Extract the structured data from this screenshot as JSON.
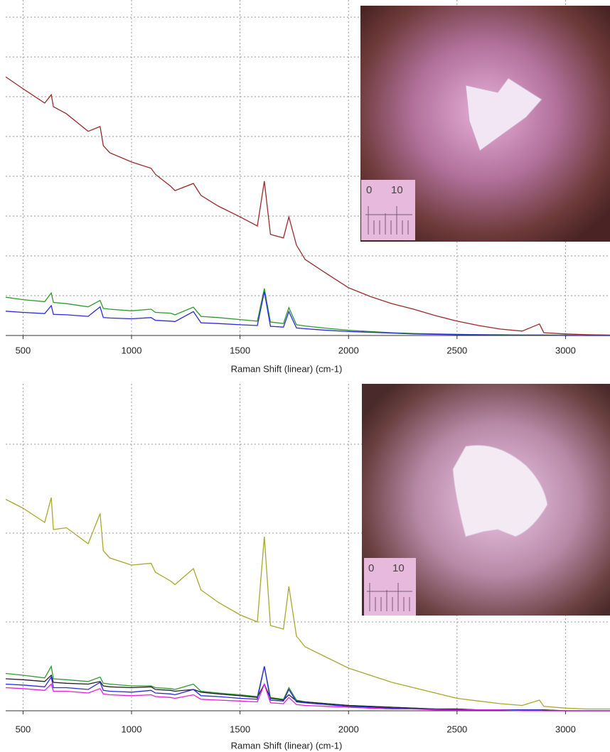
{
  "chart_data": [
    {
      "type": "line",
      "x_label": "Raman Shift (linear) (cm-1)",
      "x": [
        420,
        500,
        600,
        630,
        640,
        700,
        800,
        855,
        870,
        900,
        1000,
        1090,
        1110,
        1180,
        1200,
        1285,
        1320,
        1400,
        1500,
        1580,
        1612,
        1640,
        1700,
        1725,
        1760,
        1800,
        1900,
        2000,
        2100,
        2200,
        2300,
        2400,
        2500,
        2600,
        2700,
        2800,
        2880,
        2900,
        3000,
        3100,
        3205
      ],
      "xlim": [
        420,
        3205
      ],
      "xticks": [
        500,
        1000,
        1500,
        2000,
        2500,
        3000
      ],
      "ylim": [
        0,
        8.43
      ],
      "yticks": [
        0,
        1,
        2,
        3,
        4,
        5,
        6,
        7,
        8
      ],
      "grid": true,
      "series": [
        {
          "color": "#9b2a2a",
          "values": [
            6.5,
            6.2,
            5.84,
            6.05,
            5.75,
            5.57,
            5.13,
            5.25,
            4.77,
            4.59,
            4.36,
            4.2,
            4.05,
            3.75,
            3.64,
            3.82,
            3.52,
            3.25,
            2.98,
            2.75,
            3.88,
            2.54,
            2.45,
            2.98,
            2.27,
            1.91,
            1.55,
            1.2,
            0.98,
            0.8,
            0.66,
            0.5,
            0.36,
            0.25,
            0.16,
            0.11,
            0.29,
            0.07,
            0.04,
            0.02,
            0.01
          ]
        },
        {
          "color": "#2e9a2e",
          "values": [
            0.96,
            0.9,
            0.85,
            1.07,
            0.83,
            0.8,
            0.72,
            0.88,
            0.68,
            0.66,
            0.62,
            0.66,
            0.58,
            0.56,
            0.52,
            0.71,
            0.48,
            0.45,
            0.4,
            0.36,
            1.18,
            0.34,
            0.3,
            0.7,
            0.27,
            0.24,
            0.18,
            0.13,
            0.1,
            0.07,
            0.05,
            0.04,
            0.03,
            0.02,
            0.02,
            0.01,
            0.01,
            0.01,
            0.01,
            0,
            0
          ]
        },
        {
          "color": "#2a2ae0",
          "values": [
            0.61,
            0.58,
            0.55,
            0.75,
            0.53,
            0.52,
            0.48,
            0.72,
            0.45,
            0.44,
            0.42,
            0.45,
            0.38,
            0.36,
            0.35,
            0.6,
            0.32,
            0.3,
            0.27,
            0.25,
            1.1,
            0.23,
            0.21,
            0.6,
            0.19,
            0.17,
            0.13,
            0.1,
            0.08,
            0.06,
            0.04,
            0.03,
            0.02,
            0.02,
            0.01,
            0.01,
            0.01,
            0.01,
            0,
            0,
            0
          ]
        }
      ]
    },
    {
      "type": "line",
      "x_label": "Raman Shift (linear) (cm-1)",
      "x": [
        420,
        500,
        600,
        630,
        640,
        700,
        800,
        855,
        870,
        900,
        1000,
        1090,
        1110,
        1180,
        1200,
        1285,
        1320,
        1400,
        1500,
        1580,
        1612,
        1640,
        1700,
        1725,
        1760,
        1800,
        1900,
        2000,
        2100,
        2200,
        2300,
        2400,
        2500,
        2600,
        2700,
        2800,
        2880,
        2900,
        3000,
        3100,
        3205
      ],
      "xlim": [
        420,
        3205
      ],
      "xticks": [
        500,
        1000,
        1500,
        2000,
        2500,
        3000
      ],
      "ylim": [
        0,
        3.68
      ],
      "yticks": [
        0,
        1,
        2,
        3
      ],
      "grid": true,
      "series": [
        {
          "color": "#a8a830",
          "values": [
            2.38,
            2.28,
            2.12,
            2.4,
            2.04,
            2.06,
            1.88,
            2.22,
            1.8,
            1.72,
            1.64,
            1.66,
            1.56,
            1.46,
            1.42,
            1.6,
            1.36,
            1.22,
            1.08,
            1,
            1.96,
            0.96,
            0.92,
            1.4,
            0.84,
            0.72,
            0.6,
            0.48,
            0.4,
            0.32,
            0.26,
            0.2,
            0.14,
            0.11,
            0.08,
            0.06,
            0.12,
            0.05,
            0.03,
            0.02,
            0.02
          ]
        },
        {
          "color": "#2e9a2e",
          "values": [
            0.42,
            0.4,
            0.37,
            0.5,
            0.36,
            0.35,
            0.33,
            0.38,
            0.31,
            0.3,
            0.28,
            0.28,
            0.26,
            0.25,
            0.24,
            0.3,
            0.22,
            0.2,
            0.18,
            0.16,
            0.5,
            0.15,
            0.13,
            0.26,
            0.12,
            0.1,
            0.08,
            0.06,
            0.05,
            0.04,
            0.03,
            0.02,
            0.02,
            0.01,
            0.01,
            0.01,
            0.01,
            0.01,
            0,
            0,
            0
          ]
        },
        {
          "color": "#222222",
          "values": [
            0.36,
            0.35,
            0.33,
            0.4,
            0.32,
            0.31,
            0.3,
            0.33,
            0.28,
            0.27,
            0.26,
            0.27,
            0.24,
            0.23,
            0.22,
            0.24,
            0.21,
            0.19,
            0.17,
            0.15,
            0.3,
            0.14,
            0.12,
            0.18,
            0.11,
            0.1,
            0.08,
            0.06,
            0.05,
            0.04,
            0.03,
            0.02,
            0.02,
            0.01,
            0.01,
            0.01,
            0.01,
            0.01,
            0,
            0,
            0
          ]
        },
        {
          "color": "#2a2ae0",
          "values": [
            0.3,
            0.29,
            0.27,
            0.38,
            0.26,
            0.26,
            0.24,
            0.32,
            0.23,
            0.22,
            0.21,
            0.23,
            0.2,
            0.19,
            0.18,
            0.24,
            0.17,
            0.16,
            0.14,
            0.13,
            0.5,
            0.12,
            0.11,
            0.24,
            0.1,
            0.09,
            0.07,
            0.05,
            0.04,
            0.03,
            0.02,
            0.02,
            0.01,
            0.01,
            0.01,
            0.01,
            0.01,
            0,
            0,
            0,
            0
          ]
        },
        {
          "color": "#e020e0",
          "values": [
            0.26,
            0.25,
            0.23,
            0.3,
            0.22,
            0.22,
            0.2,
            0.25,
            0.19,
            0.18,
            0.17,
            0.18,
            0.16,
            0.15,
            0.14,
            0.18,
            0.13,
            0.12,
            0.11,
            0.1,
            0.3,
            0.09,
            0.08,
            0.15,
            0.07,
            0.06,
            0.05,
            0.04,
            0.03,
            0.02,
            0.02,
            0.01,
            0.01,
            0.01,
            0.01,
            0,
            0,
            0,
            0,
            0,
            0
          ]
        }
      ]
    }
  ],
  "insets": [
    {
      "scale_labels": [
        "0",
        "10"
      ]
    },
    {
      "scale_labels": [
        "0",
        "10"
      ]
    }
  ]
}
